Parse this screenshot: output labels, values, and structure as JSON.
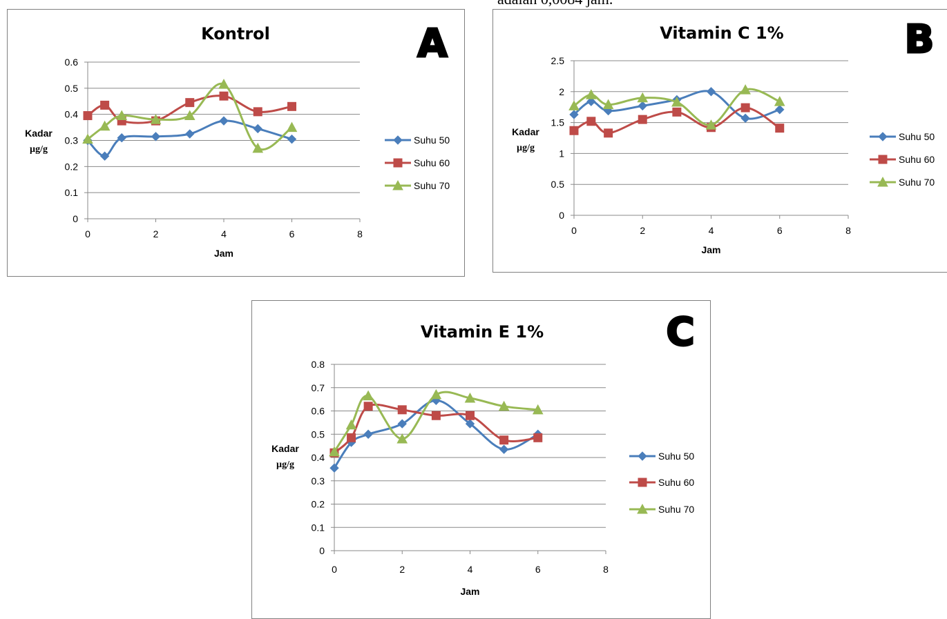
{
  "header_text": "adalah 0,0084 jam.",
  "colors": {
    "suhu50": "#4a7ebb",
    "suhu60": "#be4b48",
    "suhu70": "#98b954"
  },
  "chart_data": [
    {
      "type": "line",
      "panel": "A",
      "title": "Kontrol",
      "xlabel": "Jam",
      "ylabel": [
        "Kadar",
        "µg/g"
      ],
      "xlim": [
        0,
        8
      ],
      "xticks": [
        0,
        2,
        4,
        6,
        8
      ],
      "ylim": [
        0,
        0.6
      ],
      "yticks": [
        0,
        0.1,
        0.2,
        0.3,
        0.4,
        0.5,
        0.6
      ],
      "x": [
        0,
        0.5,
        1,
        2,
        3,
        4,
        5,
        6
      ],
      "series": [
        {
          "name": "Suhu 50",
          "marker": "diamond",
          "values": [
            0.3,
            0.24,
            0.31,
            0.315,
            0.325,
            0.375,
            0.345,
            0.305
          ]
        },
        {
          "name": "Suhu 60",
          "marker": "square",
          "values": [
            0.395,
            0.435,
            0.375,
            0.375,
            0.445,
            0.47,
            0.41,
            0.43
          ]
        },
        {
          "name": "Suhu 70",
          "marker": "triangle",
          "values": [
            0.305,
            0.355,
            0.395,
            0.38,
            0.395,
            0.515,
            0.27,
            0.35
          ]
        }
      ],
      "grid": true,
      "legend": "right"
    },
    {
      "type": "line",
      "panel": "B",
      "title": "Vitamin C 1%",
      "xlabel": "Jam",
      "ylabel": [
        "Kadar",
        "µg/g"
      ],
      "xlim": [
        0,
        8
      ],
      "xticks": [
        0,
        2,
        4,
        6,
        8
      ],
      "ylim": [
        0,
        2.5
      ],
      "yticks": [
        0,
        0.5,
        1,
        1.5,
        2,
        2.5
      ],
      "x": [
        0,
        0.5,
        1,
        2,
        3,
        4,
        5,
        6
      ],
      "series": [
        {
          "name": "Suhu 50",
          "marker": "diamond",
          "values": [
            1.63,
            1.84,
            1.69,
            1.77,
            1.87,
            2.0,
            1.57,
            1.71
          ]
        },
        {
          "name": "Suhu 60",
          "marker": "square",
          "values": [
            1.37,
            1.52,
            1.33,
            1.55,
            1.67,
            1.42,
            1.74,
            1.41
          ]
        },
        {
          "name": "Suhu 70",
          "marker": "triangle",
          "values": [
            1.77,
            1.95,
            1.79,
            1.9,
            1.83,
            1.46,
            2.03,
            1.84
          ]
        }
      ],
      "grid": true,
      "legend": "right"
    },
    {
      "type": "line",
      "panel": "C",
      "title": "Vitamin E 1%",
      "xlabel": "Jam",
      "ylabel": [
        "Kadar",
        "µg/g"
      ],
      "xlim": [
        0,
        8
      ],
      "xticks": [
        0,
        2,
        4,
        6,
        8
      ],
      "ylim": [
        0,
        0.8
      ],
      "yticks": [
        0,
        0.1,
        0.2,
        0.3,
        0.4,
        0.5,
        0.6,
        0.7,
        0.8
      ],
      "x": [
        0,
        0.5,
        1,
        2,
        3,
        4,
        5,
        6
      ],
      "series": [
        {
          "name": "Suhu 50",
          "marker": "diamond",
          "values": [
            0.355,
            0.465,
            0.5,
            0.545,
            0.645,
            0.545,
            0.435,
            0.5
          ]
        },
        {
          "name": "Suhu 60",
          "marker": "square",
          "values": [
            0.42,
            0.485,
            0.62,
            0.605,
            0.58,
            0.58,
            0.475,
            0.485
          ]
        },
        {
          "name": "Suhu 70",
          "marker": "triangle",
          "values": [
            0.425,
            0.54,
            0.665,
            0.48,
            0.67,
            0.655,
            0.62,
            0.605
          ]
        }
      ],
      "grid": true,
      "legend": "right"
    }
  ]
}
